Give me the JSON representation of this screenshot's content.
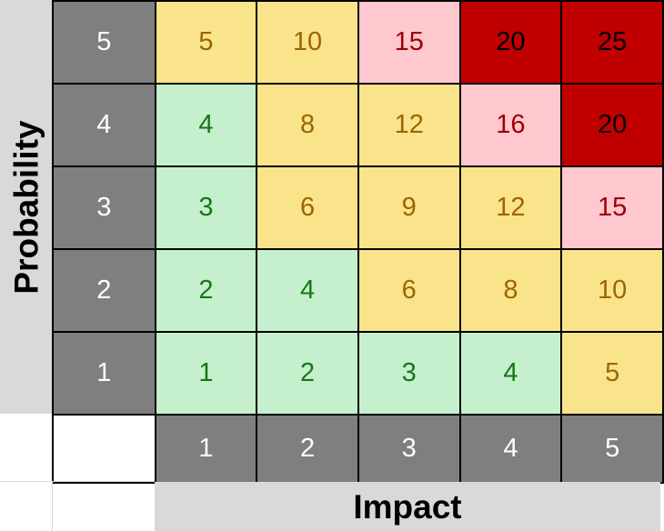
{
  "colors": {
    "axis_band_bg": "#D9D9D9",
    "header_cell_bg": "#7F7F7F",
    "header_cell_text": "#FFFFFF",
    "cell_border": "#000000",
    "levels": {
      "green": {
        "bg": "#C6EFCE",
        "text": "#157815"
      },
      "yellow": {
        "bg": "#FAE48B",
        "text": "#9C6500"
      },
      "pink": {
        "bg": "#FFC7CE",
        "text": "#9C0006"
      },
      "red": {
        "bg": "#C00000",
        "text": "#000000"
      }
    }
  },
  "chart_data": {
    "type": "heatmap",
    "xlabel": "Impact",
    "ylabel": "Probability",
    "x_categories": [
      "1",
      "2",
      "3",
      "4",
      "5"
    ],
    "y_categories": [
      "5",
      "4",
      "3",
      "2",
      "1"
    ],
    "rows": [
      {
        "probability": "5",
        "values": [
          "5",
          "10",
          "15",
          "20",
          "25"
        ],
        "levels": [
          "yellow",
          "yellow",
          "pink",
          "red",
          "red"
        ]
      },
      {
        "probability": "4",
        "values": [
          "4",
          "8",
          "12",
          "16",
          "20"
        ],
        "levels": [
          "green",
          "yellow",
          "yellow",
          "pink",
          "red"
        ]
      },
      {
        "probability": "3",
        "values": [
          "3",
          "6",
          "9",
          "12",
          "15"
        ],
        "levels": [
          "green",
          "yellow",
          "yellow",
          "yellow",
          "pink"
        ]
      },
      {
        "probability": "2",
        "values": [
          "2",
          "4",
          "6",
          "8",
          "10"
        ],
        "levels": [
          "green",
          "green",
          "yellow",
          "yellow",
          "yellow"
        ]
      },
      {
        "probability": "1",
        "values": [
          "1",
          "2",
          "3",
          "4",
          "5"
        ],
        "levels": [
          "green",
          "green",
          "green",
          "green",
          "yellow"
        ]
      }
    ],
    "legend": "none",
    "grid": "black cell borders",
    "value_rule": "cell = probability x impact"
  }
}
